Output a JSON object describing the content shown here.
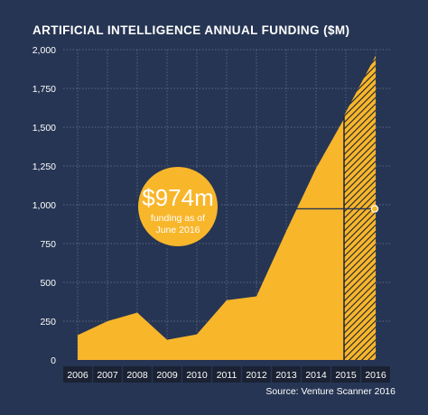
{
  "title": "ARTIFICIAL INTELLIGENCE ANNUAL FUNDING ($M)",
  "source": "Source: Venture Scanner 2016",
  "colors": {
    "background": "#263553",
    "area": "#f8b62b",
    "grid": "#6f7a92",
    "xaxis_band": "#1a2233",
    "text": "#ffffff"
  },
  "callout": {
    "value_label": "$974m",
    "line1": "funding as of",
    "line2": "June 2016",
    "value": 974
  },
  "chart_data": {
    "type": "area",
    "title": "ARTIFICIAL INTELLIGENCE ANNUAL FUNDING ($M)",
    "xlabel": "",
    "ylabel": "",
    "ylim": [
      0,
      2000
    ],
    "yticks": [
      0,
      250,
      500,
      750,
      1000,
      1250,
      1500,
      1750,
      2000
    ],
    "ytick_labels": [
      "0",
      "250",
      "500",
      "750",
      "1,000",
      "1,250",
      "1,500",
      "1,750",
      "2,000"
    ],
    "categories": [
      "2006",
      "2007",
      "2008",
      "2009",
      "2010",
      "2011",
      "2012",
      "2013",
      "2014",
      "2015",
      "2016"
    ],
    "values": [
      160,
      250,
      305,
      130,
      165,
      385,
      410,
      830,
      1235,
      1575,
      1960
    ],
    "projected_from": "2015",
    "grid": true,
    "legend": "none"
  }
}
